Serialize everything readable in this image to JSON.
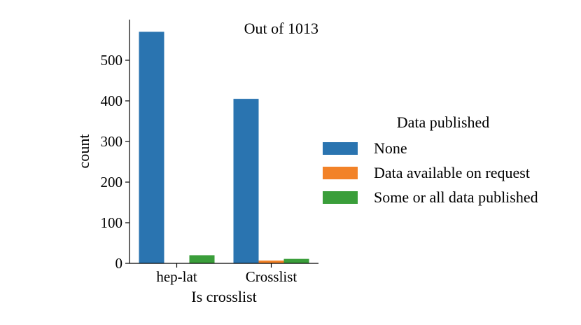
{
  "chart_data": {
    "type": "bar",
    "categories": [
      "hep-lat",
      "Crosslist"
    ],
    "series": [
      {
        "name": "None",
        "values": [
          570,
          405
        ],
        "color": "#2a74b0"
      },
      {
        "name": "Data available on request",
        "values": [
          0,
          7
        ],
        "color": "#f28228"
      },
      {
        "name": "Some or all data published",
        "values": [
          20,
          11
        ],
        "color": "#3a9e3a"
      }
    ],
    "xlabel": "Is crosslist",
    "ylabel": "count",
    "ylim": [
      0,
      600
    ],
    "yticks": [
      0,
      100,
      200,
      300,
      400,
      500
    ],
    "annotation": "Out of 1013",
    "legend": {
      "title": "Data published",
      "placement": "right"
    },
    "grid": false
  }
}
